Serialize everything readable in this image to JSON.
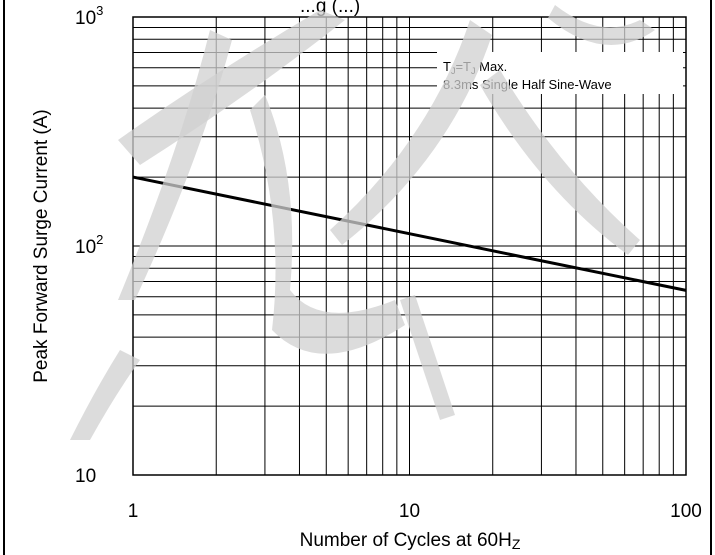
{
  "chart_data": {
    "type": "line",
    "title_partial": "...g (...)",
    "xlabel": "Number of Cycles at 60H",
    "xlabel_sub": "Z",
    "ylabel": "Peak Forward Surge Current (A)",
    "x_scale": "log",
    "y_scale": "log",
    "xlim": [
      1,
      100
    ],
    "ylim": [
      10,
      1000
    ],
    "x_ticks": [
      {
        "value": 1,
        "label": "1"
      },
      {
        "value": 10,
        "label": "10"
      },
      {
        "value": 100,
        "label": "100"
      }
    ],
    "y_ticks": [
      {
        "value": 10,
        "base": "10",
        "exp": ""
      },
      {
        "value": 100,
        "base": "10",
        "exp": "2"
      },
      {
        "value": 1000,
        "base": "10",
        "exp": "3"
      }
    ],
    "grid": true,
    "annotation": {
      "line1_a": "T",
      "line1_a_sub": "J",
      "line1_b": "=T",
      "line1_b_sub": "J",
      "line1_c": " Max.",
      "line2": "8.3ms Single Half Sine-Wave"
    },
    "series": [
      {
        "x": [
          1,
          100
        ],
        "y": [
          200,
          64
        ]
      }
    ]
  }
}
